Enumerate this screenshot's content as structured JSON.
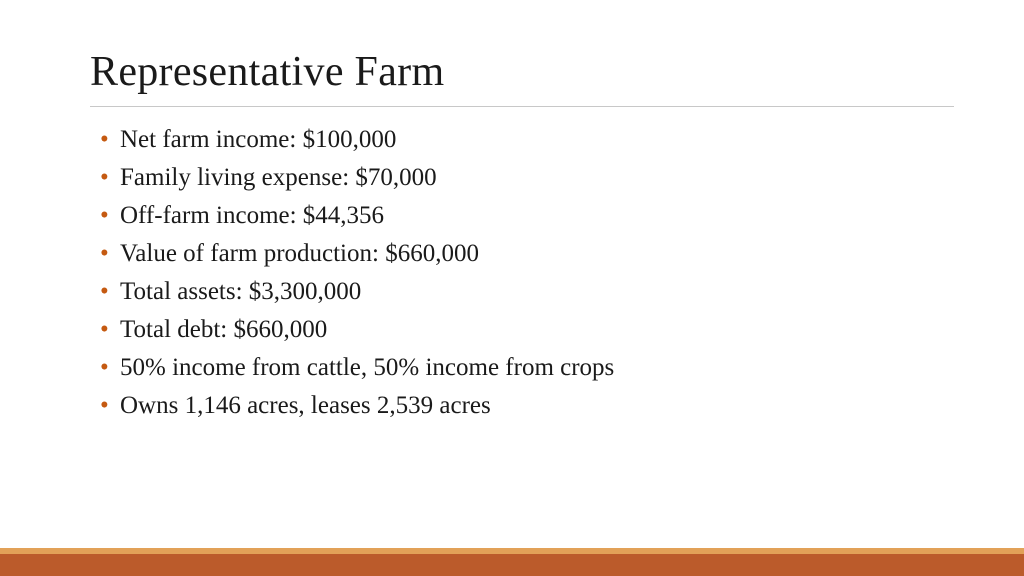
{
  "slide": {
    "title": "Representative Farm",
    "title_fontsize": 42,
    "title_color": "#1a1a1a",
    "bullet_color": "#c55a11",
    "text_color": "#1a1a1a",
    "text_fontsize": 25,
    "rule_color": "#c8c8c8",
    "background": "#ffffff",
    "bullets": [
      "Net farm income: $100,000",
      "Family living expense: $70,000",
      "Off-farm income: $44,356",
      "Value of  farm production: $660,000",
      "Total assets: $3,300,000",
      "Total debt: $660,000",
      "50% income from cattle, 50% income from crops",
      "Owns 1,146 acres, leases 2,539 acres"
    ],
    "footer": {
      "band_top_color": "#e2a158",
      "band_top_height": 6,
      "band_bottom_color": "#bb5b2b",
      "band_bottom_height": 22
    }
  }
}
